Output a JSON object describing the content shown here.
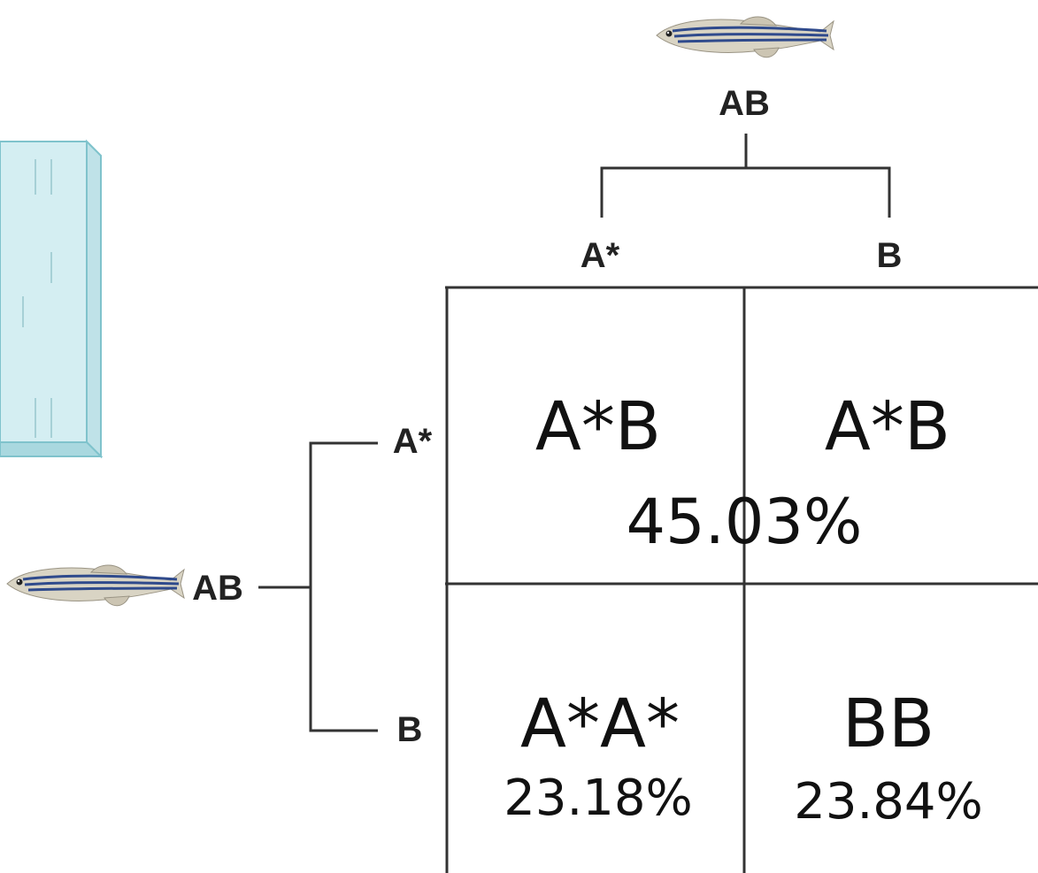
{
  "top_parent": {
    "genotype": "AB",
    "alleles": [
      "A*",
      "B"
    ]
  },
  "left_parent": {
    "genotype": "AB",
    "alleles": [
      "A*",
      "B"
    ]
  },
  "grid": {
    "cells": {
      "top_left": "A*B",
      "top_right": "A*B",
      "bottom_left": "A*A*",
      "bottom_right": "BB"
    },
    "percentages": {
      "heterozygous": "45.03%",
      "homozygous_a": "23.18%",
      "homozygous_b": "23.84%"
    }
  },
  "icons": [
    "zebrafish-icon",
    "water-tank-icon"
  ],
  "colors": {
    "line": "#333333",
    "tank_fill": "#d4eef2",
    "tank_edge": "#7fc3cc",
    "fish_stripe": "#2f4a8c"
  }
}
